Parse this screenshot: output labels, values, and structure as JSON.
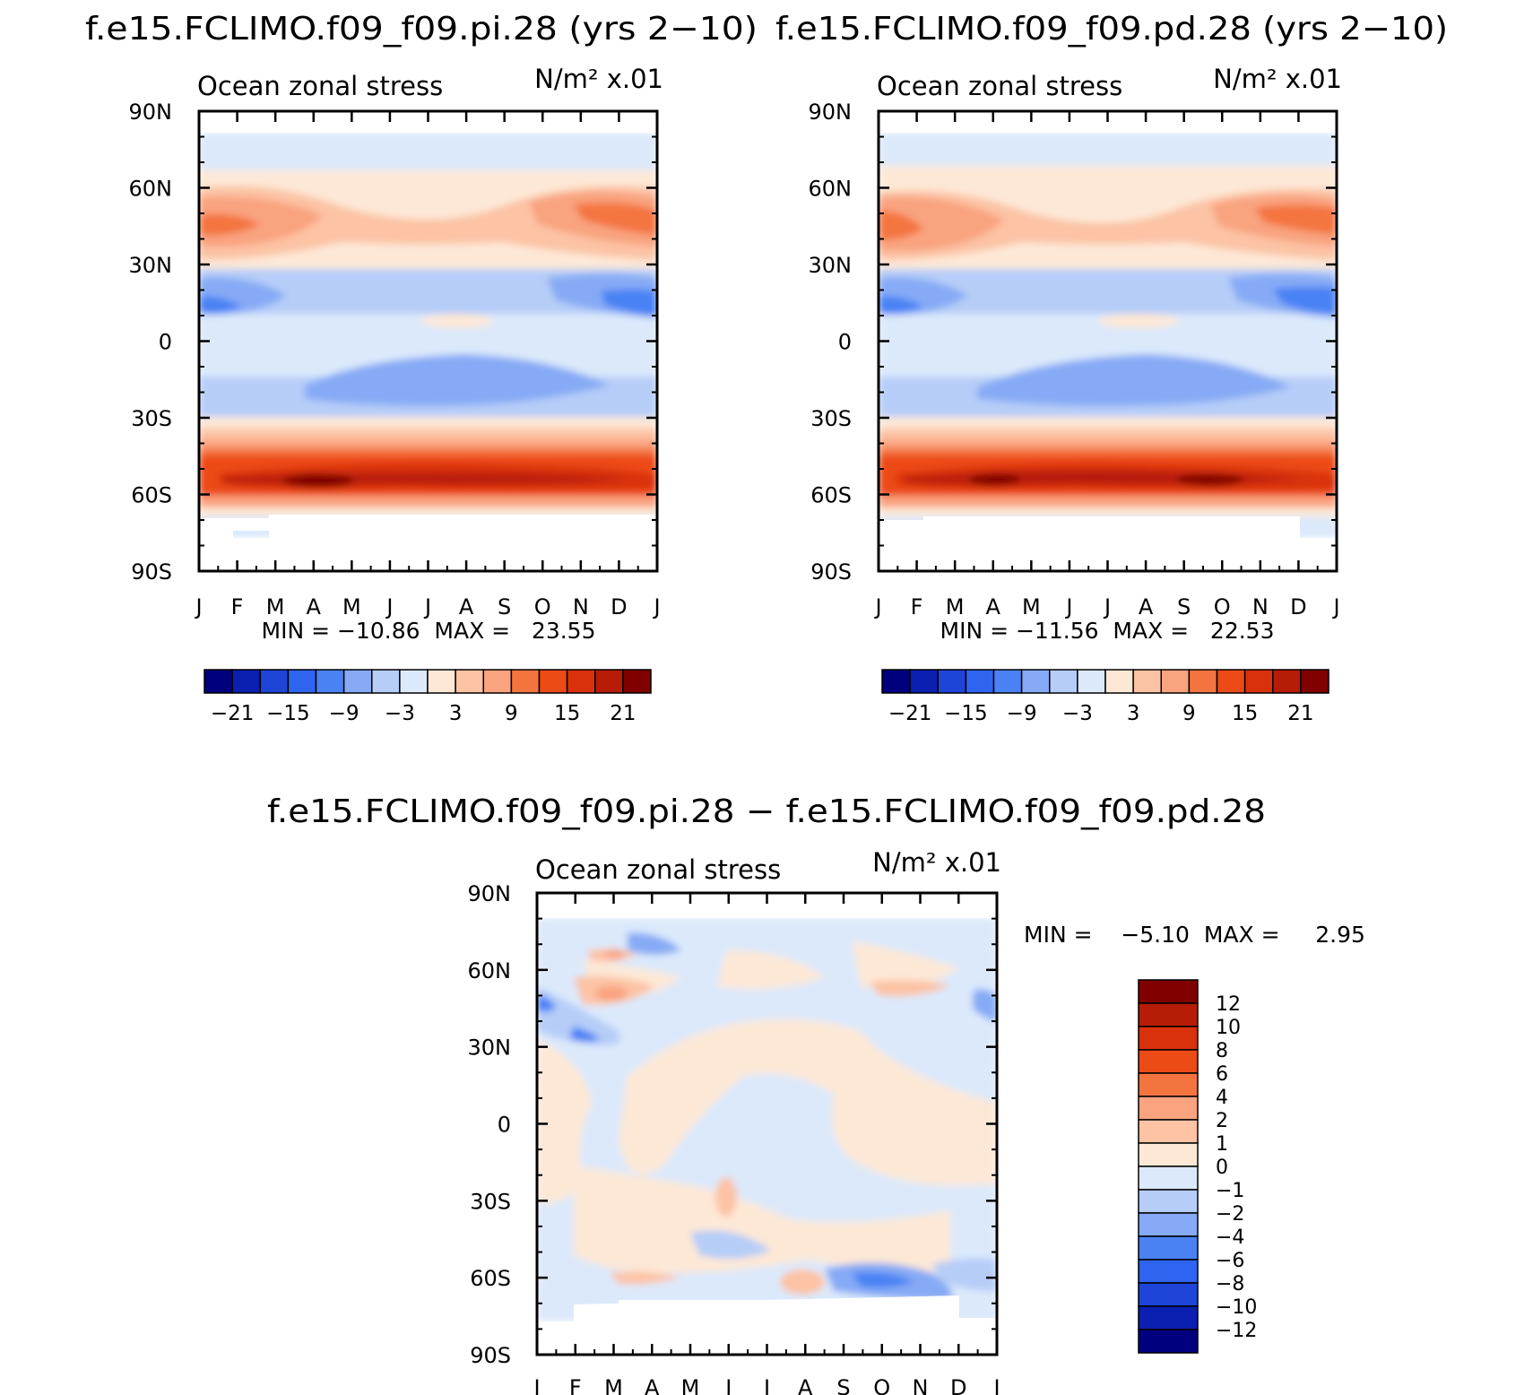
{
  "palette": {
    "full": [
      "#00007f",
      "#0b1fb0",
      "#1f44d8",
      "#2e64ef",
      "#4a82f4",
      "#86aaf5",
      "#b6cdf8",
      "#dce9fb",
      "#fde8d6",
      "#fcc3a4",
      "#f9a37f",
      "#f4743f",
      "#ec4a17",
      "#d9310b",
      "#b71c07",
      "#800000"
    ],
    "diff": [
      "#800000",
      "#b71c07",
      "#d9310b",
      "#ec4a17",
      "#f4743f",
      "#f9a37f",
      "#fcc3a4",
      "#fde8d6",
      "#dce9fb",
      "#b6cdf8",
      "#86aaf5",
      "#4a82f4",
      "#2e64ef",
      "#1f44d8",
      "#0b1fb0",
      "#00007f"
    ]
  },
  "chart_data": [
    {
      "type": "heatmap",
      "title": "f.e15.FCLIMO.f09_f09.pi.28 (yrs 2−10)",
      "left_label": "Ocean zonal stress",
      "units_label": "N/m² x.01",
      "x_ticks": [
        "J",
        "F",
        "M",
        "A",
        "M",
        "J",
        "J",
        "A",
        "S",
        "O",
        "N",
        "D",
        "J"
      ],
      "y_ticks": [
        "90N",
        "60N",
        "30N",
        "0",
        "30S",
        "60S",
        "90S"
      ],
      "y_range": [
        -90,
        90
      ],
      "stats": "MIN = −10.86  MAX =   23.55",
      "min": -10.86,
      "max": 23.55,
      "colorbar_ticks": [
        "−21",
        "−15",
        "−9",
        "−3",
        "3",
        "9",
        "15",
        "21"
      ],
      "levels": [
        -24,
        -21,
        -18,
        -15,
        -12,
        -9,
        -6,
        -3,
        0,
        3,
        6,
        9,
        12,
        15,
        18,
        21,
        24
      ]
    },
    {
      "type": "heatmap",
      "title": "f.e15.FCLIMO.f09_f09.pd.28 (yrs 2−10)",
      "left_label": "Ocean zonal stress",
      "units_label": "N/m² x.01",
      "x_ticks": [
        "J",
        "F",
        "M",
        "A",
        "M",
        "J",
        "J",
        "A",
        "S",
        "O",
        "N",
        "D",
        "J"
      ],
      "y_ticks": [
        "90N",
        "60N",
        "30N",
        "0",
        "30S",
        "60S",
        "90S"
      ],
      "y_range": [
        -90,
        90
      ],
      "stats": "MIN = −11.56  MAX =   22.53",
      "min": -11.56,
      "max": 22.53,
      "colorbar_ticks": [
        "−21",
        "−15",
        "−9",
        "−3",
        "3",
        "9",
        "15",
        "21"
      ],
      "levels": [
        -24,
        -21,
        -18,
        -15,
        -12,
        -9,
        -6,
        -3,
        0,
        3,
        6,
        9,
        12,
        15,
        18,
        21,
        24
      ]
    },
    {
      "type": "heatmap",
      "title": "f.e15.FCLIMO.f09_f09.pi.28 − f.e15.FCLIMO.f09_f09.pd.28",
      "left_label": "Ocean zonal stress",
      "units_label": "N/m² x.01",
      "x_ticks": [
        "J",
        "F",
        "M",
        "A",
        "M",
        "J",
        "J",
        "A",
        "S",
        "O",
        "N",
        "D",
        "J"
      ],
      "y_ticks": [
        "90N",
        "60N",
        "30N",
        "0",
        "30S",
        "60S",
        "90S"
      ],
      "y_range": [
        -90,
        90
      ],
      "stats": "MIN =    −5.10  MAX =     2.95",
      "min": -5.1,
      "max": 2.95,
      "colorbar_ticks": [
        "12",
        "10",
        "8",
        "6",
        "4",
        "2",
        "1",
        "0",
        "−1",
        "−2",
        "−4",
        "−6",
        "−8",
        "−10",
        "−12"
      ]
    }
  ]
}
